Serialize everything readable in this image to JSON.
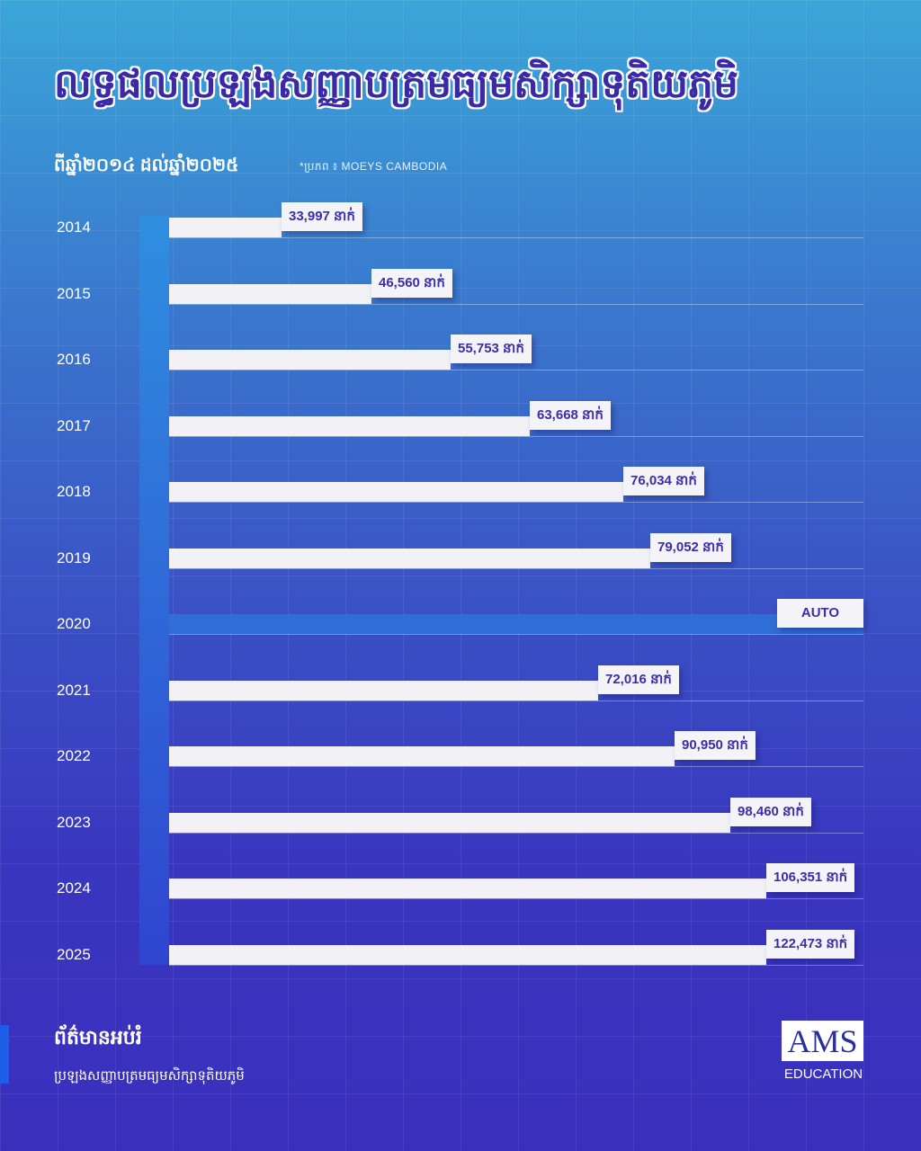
{
  "header": {
    "title": "លទ្ធផលប្រឡងសញ្ញាបត្រមធ្យមសិក្សាទុតិយភូមិ",
    "subtitle": "ពីឆ្នាំ២០១៤ ដល់ឆ្នាំ២០២៥",
    "source": "*ប្រភព ៖ MOEYS CAMBODIA"
  },
  "chart_data": {
    "type": "bar",
    "orientation": "horizontal",
    "title": "លទ្ធផលប្រឡងសញ្ញាបត្រមធ្យមសិក្សាទុតិយភូមិ",
    "xlabel": "",
    "ylabel": "",
    "unit": "នាក់",
    "categories": [
      "2014",
      "2015",
      "2016",
      "2017",
      "2018",
      "2019",
      "2020",
      "2021",
      "2022",
      "2023",
      "2024",
      "2025"
    ],
    "values": [
      33997,
      46560,
      55753,
      63668,
      76034,
      79052,
      null,
      72016,
      90950,
      98460,
      106351,
      122473
    ],
    "labels": [
      "33,997 នាក់",
      "46,560 នាក់",
      "55,753 នាក់",
      "63,668 នាក់",
      "76,034 នាក់",
      "79,052 នាក់",
      "AUTO",
      "72,016 នាក់",
      "90,950 នាក់",
      "98,460 នាក់",
      "106,351 នាក់",
      "122,473 នាក់"
    ],
    "highlight_category": "2020",
    "colors": {
      "bar": "#f1f1f6",
      "highlight": "#2f6ed6",
      "label_text": "#3a2fa8"
    }
  },
  "footer": {
    "title": "ព័ត៌មានអប់រំ",
    "subtitle": "ប្រឡងសញ្ញាបត្រមធ្យមសិក្សាទុតិយភូមិ",
    "logo_text": "AMS",
    "logo_sub": "EDUCATION"
  }
}
